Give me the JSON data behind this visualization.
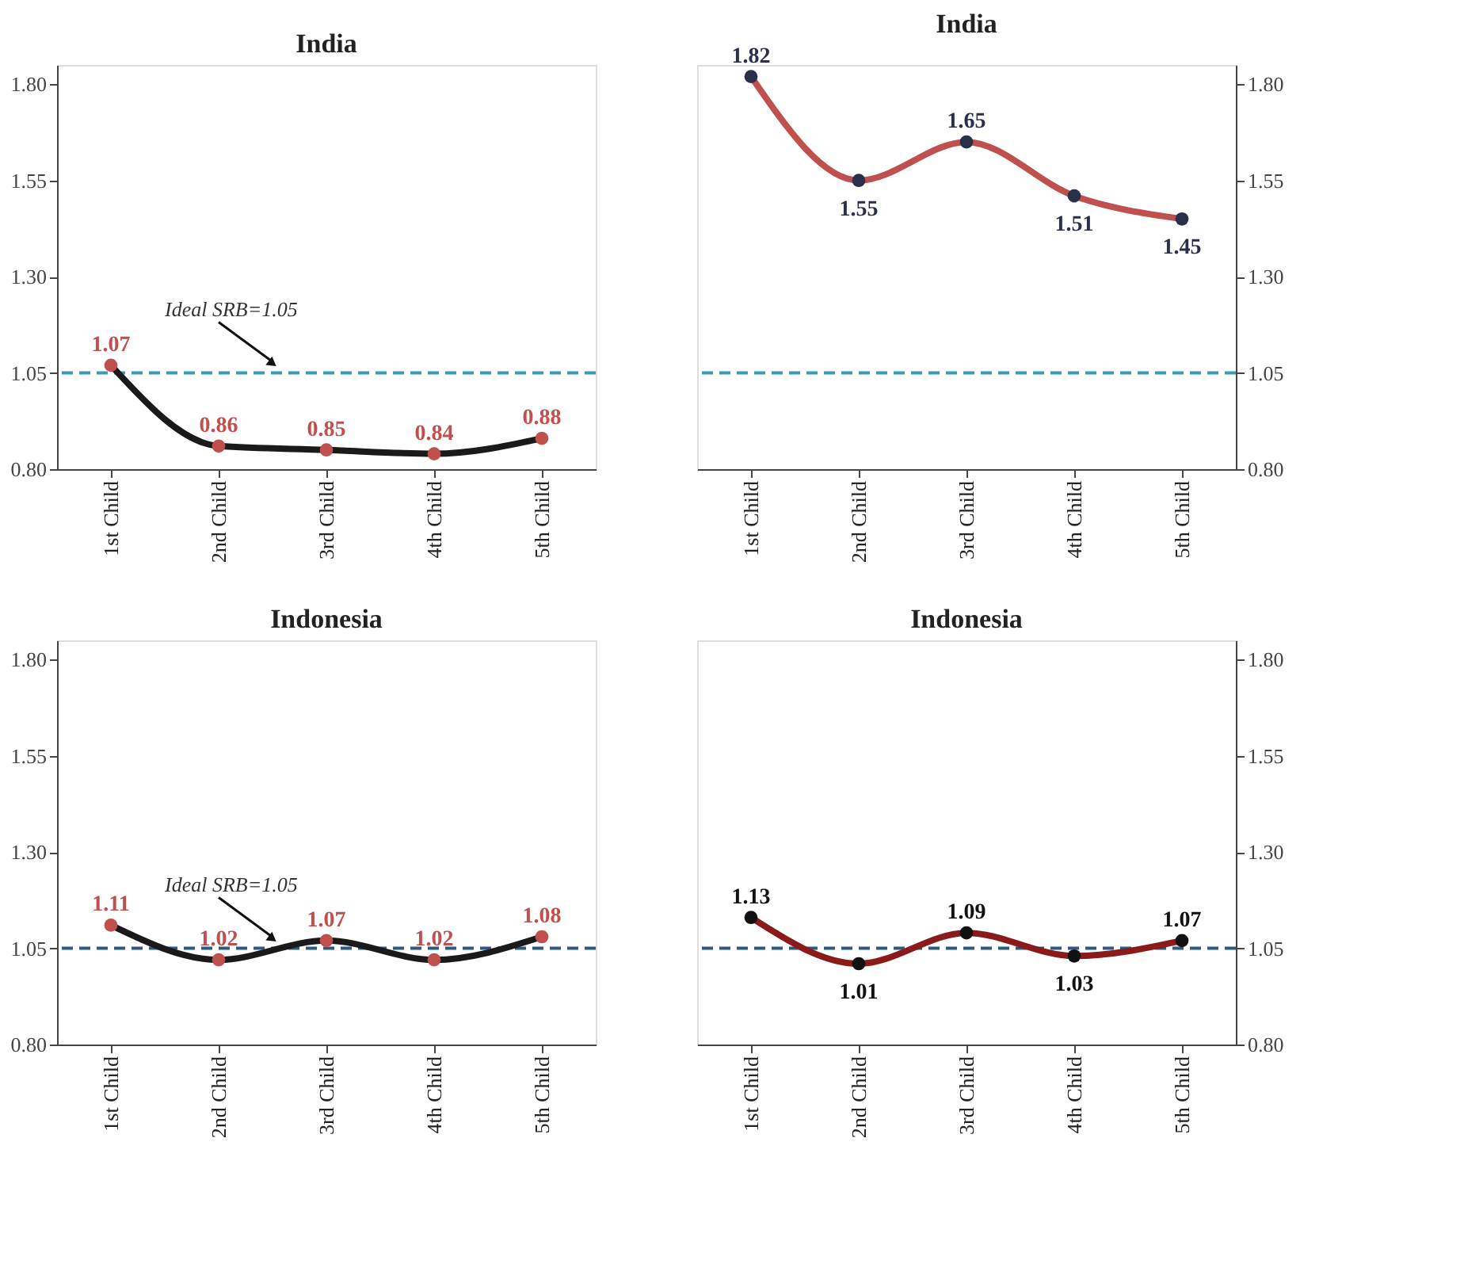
{
  "chart_data": [
    {
      "type": "line",
      "title": "India",
      "categories": [
        "1st Child",
        "2nd Child",
        "3rd Child",
        "4th Child",
        "5th Child"
      ],
      "series": [
        {
          "color": "#1a1a1a",
          "colors": [
            "#c0504d",
            "#c0504d",
            "#c0504d",
            "#c0504d",
            "#c0504d"
          ],
          "values": [
            1.07,
            0.86,
            0.85,
            0.84,
            0.88
          ]
        }
      ],
      "ylim": [
        0.8,
        1.85
      ],
      "yticks": [
        {
          "value": 0.8,
          "label": "0.80"
        },
        {
          "value": 1.05,
          "label": "1.05"
        },
        {
          "value": 1.3,
          "label": "1.30"
        },
        {
          "value": 1.55,
          "label": "1.55"
        },
        {
          "value": 1.8,
          "label": "1.80"
        }
      ],
      "ref_lines": [
        {
          "axis": "y",
          "value": 1.05,
          "label": "Ideal SRB=1.05",
          "color": "#3a9ab8",
          "line_style": "dashed"
        }
      ],
      "data_labels": true,
      "marker": "circle",
      "line_style": "solid",
      "grid": false,
      "legend": false
    },
    {
      "type": "line",
      "title": "India",
      "categories": [
        "1st Child",
        "2nd Child",
        "3rd Child",
        "4th Child",
        "5th Child"
      ],
      "series": [
        {
          "color": "#c0504d",
          "colors": [
            "#2a2f4a",
            "#2a2f4a",
            "#2a2f4a",
            "#2a2f4a",
            "#2a2f4a"
          ],
          "values": [
            1.82,
            1.55,
            1.65,
            1.51,
            1.45
          ]
        }
      ],
      "ylim": [
        0.8,
        1.85
      ],
      "yticks": [
        {
          "value": 0.8,
          "label": "0.80"
        },
        {
          "value": 1.05,
          "label": "1.05"
        },
        {
          "value": 1.3,
          "label": "1.30"
        },
        {
          "value": 1.55,
          "label": "1.55"
        },
        {
          "value": 1.8,
          "label": "1.80"
        }
      ],
      "ref_lines": [
        {
          "axis": "y",
          "value": 1.05,
          "color": "#3a9ab8",
          "line_style": "dashed"
        }
      ],
      "data_labels": true,
      "marker": "circle",
      "line_style": "solid",
      "grid": false,
      "legend": false
    },
    {
      "type": "line",
      "title": "Indonesia",
      "categories": [
        "1st Child",
        "2nd Child",
        "3rd Child",
        "4th Child",
        "5th Child"
      ],
      "series": [
        {
          "color": "#1a1a1a",
          "colors": [
            "#c0504d",
            "#c0504d",
            "#c0504d",
            "#c0504d",
            "#c0504d"
          ],
          "values": [
            1.11,
            1.02,
            1.07,
            1.02,
            1.08
          ]
        }
      ],
      "ylim": [
        0.8,
        1.85
      ],
      "yticks": [
        {
          "value": 0.8,
          "label": "0.80"
        },
        {
          "value": 1.05,
          "label": "1.05"
        },
        {
          "value": 1.3,
          "label": "1.30"
        },
        {
          "value": 1.55,
          "label": "1.55"
        },
        {
          "value": 1.8,
          "label": "1.80"
        }
      ],
      "ref_lines": [
        {
          "axis": "y",
          "value": 1.05,
          "label": "Ideal SRB=1.05",
          "color": "#2a5a8a",
          "line_style": "dashed"
        }
      ],
      "data_labels": true,
      "marker": "circle",
      "line_style": "solid",
      "grid": false,
      "legend": false
    },
    {
      "type": "line",
      "title": "Indonesia",
      "categories": [
        "1st Child",
        "2nd Child",
        "3rd Child",
        "4th Child",
        "5th Child"
      ],
      "series": [
        {
          "color": "#8b1a1a",
          "colors": [
            "#111111",
            "#111111",
            "#111111",
            "#111111",
            "#111111"
          ],
          "values": [
            1.13,
            1.01,
            1.09,
            1.03,
            1.07
          ]
        }
      ],
      "ylim": [
        0.8,
        1.85
      ],
      "yticks": [
        {
          "value": 0.8,
          "label": "0.80"
        },
        {
          "value": 1.05,
          "label": "1.05"
        },
        {
          "value": 1.3,
          "label": "1.30"
        },
        {
          "value": 1.55,
          "label": "1.55"
        },
        {
          "value": 1.8,
          "label": "1.80"
        }
      ],
      "ref_lines": [
        {
          "axis": "y",
          "value": 1.05,
          "color": "#2a5a8a",
          "line_style": "dashed"
        }
      ],
      "data_labels": true,
      "marker": "circle",
      "line_style": "solid",
      "grid": false,
      "legend": false
    }
  ]
}
